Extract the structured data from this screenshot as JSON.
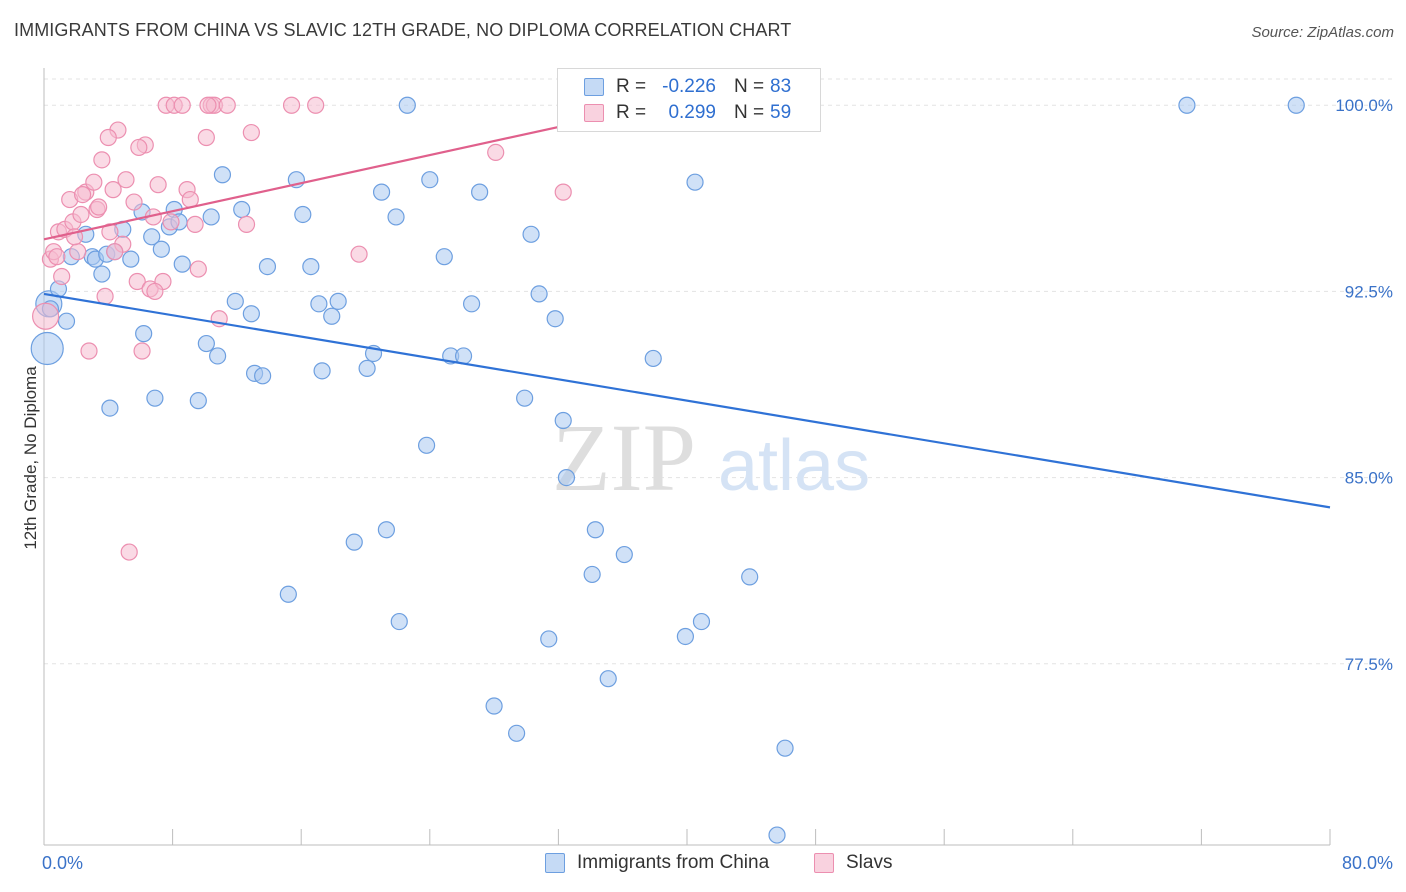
{
  "title": "IMMIGRANTS FROM CHINA VS SLAVIC 12TH GRADE, NO DIPLOMA CORRELATION CHART",
  "source": "Source: ZipAtlas.com",
  "watermark": {
    "zip": "ZIP",
    "atlas": "atlas"
  },
  "legend_stats": {
    "r_label": "R =",
    "n_label": "N =",
    "series1": {
      "r": "-0.226",
      "n": "83"
    },
    "series2": {
      "r": "0.299",
      "n": "59"
    }
  },
  "colors": {
    "china_fill": "#a9c8f0",
    "china_stroke": "#6d9fe0",
    "china_line": "#2f72d6",
    "slavs_fill": "#f6bcd0",
    "slavs_stroke": "#ec8fb0",
    "slavs_line": "#e0608c",
    "tick_text": "#3a72c8",
    "grid": "#e3e3e3"
  },
  "chart_data": {
    "type": "scatter",
    "xlabel": "",
    "ylabel": "12th Grade, No Diploma",
    "xlim": [
      0,
      80
    ],
    "ylim": [
      70.2,
      101.5
    ],
    "x_tick_labels": [
      "0.0%",
      "80.0%"
    ],
    "y_ticks": [
      77.5,
      85.0,
      92.5,
      100.0
    ],
    "y_tick_labels": [
      "77.5%",
      "85.0%",
      "92.5%",
      "100.0%"
    ],
    "grid": true,
    "legend_position": "bottom-center",
    "series": [
      {
        "name": "Immigrants from China",
        "trend": {
          "x": [
            0,
            80
          ],
          "y": [
            92.4,
            83.8
          ]
        },
        "points": [
          [
            0.2,
            90.2
          ],
          [
            0.3,
            92.0
          ],
          [
            0.9,
            92.6
          ],
          [
            1.4,
            91.3
          ],
          [
            2.6,
            94.8
          ],
          [
            3.0,
            93.9
          ],
          [
            3.2,
            93.8
          ],
          [
            3.6,
            93.2
          ],
          [
            3.9,
            94.0
          ],
          [
            4.1,
            87.8
          ],
          [
            4.4,
            94.1
          ],
          [
            4.9,
            95.0
          ],
          [
            5.4,
            93.8
          ],
          [
            6.2,
            90.8
          ],
          [
            6.1,
            95.7
          ],
          [
            6.7,
            94.7
          ],
          [
            6.9,
            88.2
          ],
          [
            7.3,
            94.2
          ],
          [
            7.8,
            95.1
          ],
          [
            8.1,
            95.8
          ],
          [
            8.4,
            95.3
          ],
          [
            8.6,
            93.6
          ],
          [
            9.6,
            88.1
          ],
          [
            10.1,
            90.4
          ],
          [
            10.4,
            95.5
          ],
          [
            10.8,
            89.9
          ],
          [
            11.1,
            97.2
          ],
          [
            11.9,
            92.1
          ],
          [
            12.3,
            95.8
          ],
          [
            12.9,
            91.6
          ],
          [
            13.1,
            89.2
          ],
          [
            13.6,
            89.1
          ],
          [
            13.9,
            93.5
          ],
          [
            15.2,
            80.3
          ],
          [
            15.7,
            97.0
          ],
          [
            16.1,
            95.6
          ],
          [
            16.6,
            93.5
          ],
          [
            17.1,
            92.0
          ],
          [
            17.3,
            89.3
          ],
          [
            17.9,
            91.5
          ],
          [
            18.3,
            92.1
          ],
          [
            19.3,
            82.4
          ],
          [
            20.1,
            89.4
          ],
          [
            20.5,
            90.0
          ],
          [
            21.0,
            96.5
          ],
          [
            21.3,
            82.9
          ],
          [
            21.9,
            95.5
          ],
          [
            22.1,
            79.2
          ],
          [
            22.6,
            100.0
          ],
          [
            23.8,
            86.3
          ],
          [
            24.0,
            97.0
          ],
          [
            24.9,
            93.9
          ],
          [
            25.3,
            89.9
          ],
          [
            26.1,
            89.9
          ],
          [
            26.6,
            92.0
          ],
          [
            27.1,
            96.5
          ],
          [
            28.0,
            75.8
          ],
          [
            29.4,
            74.7
          ],
          [
            29.9,
            88.2
          ],
          [
            30.3,
            94.8
          ],
          [
            30.8,
            92.4
          ],
          [
            31.4,
            78.5
          ],
          [
            31.8,
            91.4
          ],
          [
            32.3,
            87.3
          ],
          [
            32.5,
            85.0
          ],
          [
            33.3,
            100.0
          ],
          [
            34.1,
            81.1
          ],
          [
            34.3,
            82.9
          ],
          [
            35.1,
            76.9
          ],
          [
            36.1,
            81.9
          ],
          [
            37.5,
            100.0
          ],
          [
            37.9,
            89.8
          ],
          [
            38.4,
            99.6
          ],
          [
            39.9,
            78.6
          ],
          [
            40.5,
            96.9
          ],
          [
            40.9,
            79.2
          ],
          [
            43.9,
            81.0
          ],
          [
            45.6,
            70.6
          ],
          [
            46.1,
            74.1
          ],
          [
            71.1,
            100.0
          ],
          [
            77.9,
            100.0
          ],
          [
            0.4,
            91.8
          ],
          [
            1.7,
            93.9
          ]
        ]
      },
      {
        "name": "Slavs",
        "trend": {
          "x": [
            0,
            37.5
          ],
          "y": [
            94.6,
            99.9
          ]
        },
        "points": [
          [
            0.1,
            91.5
          ],
          [
            0.4,
            93.8
          ],
          [
            0.6,
            94.1
          ],
          [
            0.9,
            94.9
          ],
          [
            1.1,
            93.1
          ],
          [
            1.3,
            95.0
          ],
          [
            1.6,
            96.2
          ],
          [
            1.8,
            95.3
          ],
          [
            2.1,
            94.1
          ],
          [
            2.3,
            95.6
          ],
          [
            2.6,
            96.5
          ],
          [
            2.8,
            90.1
          ],
          [
            3.1,
            96.9
          ],
          [
            3.3,
            95.8
          ],
          [
            3.6,
            97.8
          ],
          [
            3.8,
            92.3
          ],
          [
            4.1,
            94.9
          ],
          [
            4.3,
            96.6
          ],
          [
            4.6,
            99.0
          ],
          [
            4.9,
            94.4
          ],
          [
            5.1,
            97.0
          ],
          [
            5.3,
            82.0
          ],
          [
            5.6,
            96.1
          ],
          [
            5.8,
            92.9
          ],
          [
            6.1,
            90.1
          ],
          [
            6.3,
            98.4
          ],
          [
            6.6,
            92.6
          ],
          [
            6.8,
            95.5
          ],
          [
            7.1,
            96.8
          ],
          [
            7.4,
            92.9
          ],
          [
            7.6,
            100.0
          ],
          [
            7.9,
            95.3
          ],
          [
            8.1,
            100.0
          ],
          [
            8.6,
            100.0
          ],
          [
            8.9,
            96.6
          ],
          [
            9.1,
            96.2
          ],
          [
            9.6,
            93.4
          ],
          [
            10.1,
            98.7
          ],
          [
            10.4,
            100.0
          ],
          [
            10.6,
            100.0
          ],
          [
            10.9,
            91.4
          ],
          [
            11.4,
            100.0
          ],
          [
            12.6,
            95.2
          ],
          [
            12.9,
            98.9
          ],
          [
            15.4,
            100.0
          ],
          [
            16.9,
            100.0
          ],
          [
            19.6,
            94.0
          ],
          [
            28.1,
            98.1
          ],
          [
            32.3,
            96.5
          ],
          [
            0.8,
            93.9
          ],
          [
            1.9,
            94.7
          ],
          [
            2.4,
            96.4
          ],
          [
            3.4,
            95.9
          ],
          [
            4.4,
            94.1
          ],
          [
            5.9,
            98.3
          ],
          [
            6.9,
            92.5
          ],
          [
            9.4,
            95.2
          ],
          [
            10.2,
            100.0
          ],
          [
            4.0,
            98.7
          ]
        ]
      }
    ],
    "annotations": []
  }
}
